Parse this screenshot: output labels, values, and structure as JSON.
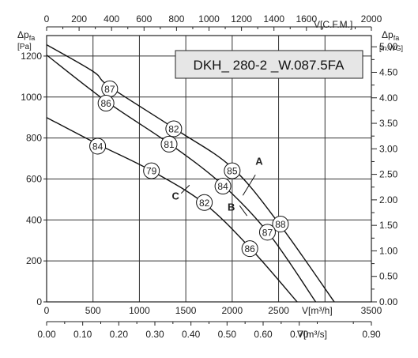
{
  "chart_data": {
    "type": "line",
    "title": "DKH_ 280-2 _W.087.5FA",
    "x_axis": {
      "label": "V[m³/h]",
      "range": [
        0,
        3500
      ],
      "ticks": [
        "0",
        "500",
        "1000",
        "1500",
        "2000",
        "2500",
        "3500"
      ]
    },
    "x_axis_top": {
      "label": "V[C.F.M.]",
      "range": [
        0,
        2000
      ],
      "ticks": [
        "0",
        "200",
        "400",
        "600",
        "800",
        "1000",
        "1200",
        "1400",
        "1600",
        "2000"
      ]
    },
    "x_axis_bottom2": {
      "label": "V[m³/s]",
      "range": [
        0,
        0.9
      ],
      "ticks": [
        "0.00",
        "0.10",
        "0.20",
        "0.30",
        "0.40",
        "0.50",
        "0.60",
        "0.70",
        "0.90"
      ]
    },
    "y_axis": {
      "label_main": "Δp",
      "label_sub": "fa",
      "unit": "[Pa]",
      "range": [
        0,
        1300
      ],
      "ticks": [
        "0",
        "200",
        "400",
        "600",
        "800",
        "1000",
        "1200"
      ]
    },
    "y_axis_right": {
      "label_main": "Δp",
      "label_sub": "fa",
      "unit": "[in.WG]",
      "range": [
        0,
        5.22
      ],
      "ticks": [
        "0.00",
        "0.50",
        "1.00",
        "1.50",
        "2.00",
        "2.50",
        "3.00",
        "3.50",
        "4.00",
        "4.50",
        "5.00"
      ]
    },
    "grid": true,
    "series": [
      {
        "name": "A",
        "points": [
          [
            0,
            1255
          ],
          [
            500,
            1125
          ],
          [
            680,
            1050
          ],
          [
            1400,
            840
          ],
          [
            2000,
            655
          ],
          [
            2500,
            385
          ],
          [
            3100,
            0
          ]
        ],
        "markers": [
          {
            "x": 680,
            "y": 1040,
            "label": "87"
          },
          {
            "x": 1370,
            "y": 845,
            "label": "82"
          },
          {
            "x": 2000,
            "y": 640,
            "label": "85"
          },
          {
            "x": 2520,
            "y": 380,
            "label": "88"
          }
        ]
      },
      {
        "name": "B",
        "points": [
          [
            0,
            1205
          ],
          [
            640,
            980
          ],
          [
            1330,
            770
          ],
          [
            1900,
            570
          ],
          [
            2400,
            330
          ],
          [
            2900,
            0
          ]
        ],
        "markers": [
          {
            "x": 640,
            "y": 970,
            "label": "86"
          },
          {
            "x": 1320,
            "y": 770,
            "label": "81"
          },
          {
            "x": 1900,
            "y": 565,
            "label": "84"
          },
          {
            "x": 2380,
            "y": 340,
            "label": "87"
          }
        ]
      },
      {
        "name": "C",
        "points": [
          [
            0,
            900
          ],
          [
            550,
            770
          ],
          [
            1130,
            640
          ],
          [
            1700,
            480
          ],
          [
            2200,
            260
          ],
          [
            2700,
            0
          ]
        ],
        "markers": [
          {
            "x": 550,
            "y": 760,
            "label": "84"
          },
          {
            "x": 1130,
            "y": 640,
            "label": "79"
          },
          {
            "x": 1700,
            "y": 485,
            "label": "82"
          },
          {
            "x": 2190,
            "y": 260,
            "label": "86"
          }
        ]
      }
    ],
    "curve_labels": [
      {
        "name": "A",
        "x": 2250,
        "y": 670
      },
      {
        "name": "B",
        "x": 1950,
        "y": 445
      },
      {
        "name": "C",
        "x": 1350,
        "y": 500
      }
    ]
  }
}
